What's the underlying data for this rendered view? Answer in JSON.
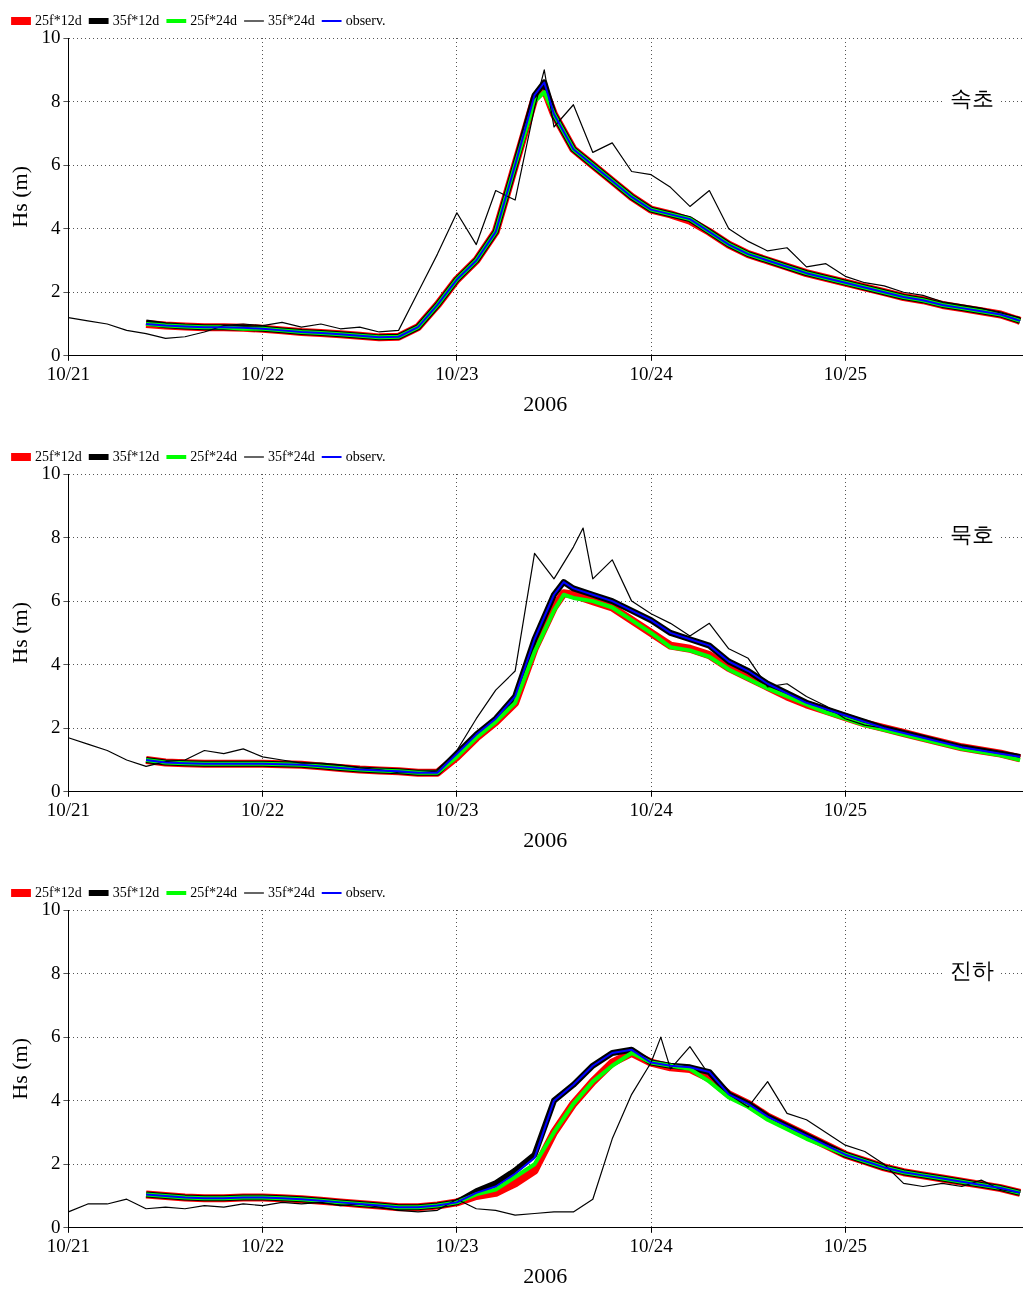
{
  "chart_data": [
    {
      "type": "line",
      "annotations": [
        "속초"
      ],
      "xlabel": "2006",
      "ylabel": "Hs (m)",
      "legend": "top left",
      "grid": true,
      "marker": "none",
      "line_style": "solid",
      "xlim": [
        "2006-10-21T00:00",
        "2006-10-25T21:50"
      ],
      "xticks": [
        {
          "value": "2006-10-21",
          "label": "10/21"
        },
        {
          "value": "2006-10-22",
          "label": "10/22"
        },
        {
          "value": "2006-10-23",
          "label": "10/23"
        },
        {
          "value": "2006-10-24",
          "label": "10/24"
        },
        {
          "value": "2006-10-25",
          "label": "10/25"
        }
      ],
      "ylim": [
        0,
        10
      ],
      "yticks": [
        0,
        2,
        4,
        6,
        8,
        10
      ],
      "x": [
        "2006-10-21T09:36",
        "2006-10-21T12:00",
        "2006-10-21T14:24",
        "2006-10-21T16:48",
        "2006-10-21T19:12",
        "2006-10-21T21:36",
        "2006-10-22T00:00",
        "2006-10-22T02:24",
        "2006-10-22T04:48",
        "2006-10-22T07:12",
        "2006-10-22T09:36",
        "2006-10-22T12:00",
        "2006-10-22T14:24",
        "2006-10-22T16:48",
        "2006-10-22T19:12",
        "2006-10-22T21:36",
        "2006-10-23T00:00",
        "2006-10-23T02:24",
        "2006-10-23T04:48",
        "2006-10-23T07:12",
        "2006-10-23T09:36",
        "2006-10-23T10:48",
        "2006-10-23T12:00",
        "2006-10-23T14:24",
        "2006-10-23T16:48",
        "2006-10-23T19:12",
        "2006-10-23T21:36",
        "2006-10-24T00:00",
        "2006-10-24T02:24",
        "2006-10-24T04:48",
        "2006-10-24T07:12",
        "2006-10-24T09:36",
        "2006-10-24T12:00",
        "2006-10-24T14:24",
        "2006-10-24T16:48",
        "2006-10-24T19:12",
        "2006-10-24T21:36",
        "2006-10-25T00:00",
        "2006-10-25T02:24",
        "2006-10-25T04:48",
        "2006-10-25T07:12",
        "2006-10-25T09:36",
        "2006-10-25T12:00",
        "2006-10-25T14:24",
        "2006-10-25T16:48",
        "2006-10-25T19:12",
        "2006-10-25T21:36"
      ],
      "series": [
        {
          "name": "25f*12d",
          "color": "#ff0000",
          "values": [
            1.0,
            0.95,
            0.92,
            0.9,
            0.9,
            0.88,
            0.85,
            0.8,
            0.75,
            0.72,
            0.68,
            0.63,
            0.58,
            0.6,
            0.9,
            1.6,
            2.4,
            3.0,
            3.9,
            6.0,
            8.1,
            8.4,
            7.6,
            6.5,
            6.0,
            5.5,
            5.0,
            4.6,
            4.45,
            4.25,
            3.9,
            3.5,
            3.2,
            3.0,
            2.8,
            2.6,
            2.45,
            2.3,
            2.15,
            2.0,
            1.85,
            1.75,
            1.6,
            1.5,
            1.4,
            1.3,
            1.1
          ]
        },
        {
          "name": "35f*12d",
          "color": "#000000",
          "values": [
            1.05,
            0.96,
            0.92,
            0.9,
            0.9,
            0.88,
            0.85,
            0.8,
            0.75,
            0.72,
            0.68,
            0.63,
            0.58,
            0.6,
            0.9,
            1.6,
            2.4,
            3.0,
            3.9,
            6.0,
            8.2,
            8.6,
            7.6,
            6.5,
            6.0,
            5.5,
            5.0,
            4.6,
            4.45,
            4.3,
            3.9,
            3.5,
            3.2,
            3.0,
            2.8,
            2.6,
            2.45,
            2.3,
            2.15,
            2.0,
            1.85,
            1.75,
            1.6,
            1.5,
            1.4,
            1.3,
            1.1
          ]
        },
        {
          "name": "25f*24d",
          "color": "#00ff00",
          "values": [
            1.0,
            0.95,
            0.92,
            0.9,
            0.9,
            0.85,
            0.85,
            0.8,
            0.75,
            0.72,
            0.68,
            0.63,
            0.58,
            0.6,
            0.9,
            1.6,
            2.4,
            3.0,
            3.9,
            6.0,
            8.0,
            8.3,
            7.6,
            6.5,
            6.0,
            5.5,
            5.0,
            4.6,
            4.45,
            4.3,
            3.9,
            3.5,
            3.2,
            3.0,
            2.8,
            2.6,
            2.45,
            2.3,
            2.15,
            2.0,
            1.85,
            1.75,
            1.6,
            1.5,
            1.4,
            1.3,
            1.1
          ]
        },
        {
          "name": "35f*24d",
          "color": "#000000",
          "x": [
            "2006-10-21T00:00",
            "2006-10-21T02:24",
            "2006-10-21T04:48",
            "2006-10-21T07:12",
            "2006-10-21T09:36",
            "2006-10-21T12:00",
            "2006-10-21T14:24",
            "2006-10-21T16:48",
            "2006-10-21T19:12",
            "2006-10-21T21:36",
            "2006-10-22T00:00",
            "2006-10-22T02:24",
            "2006-10-22T04:48",
            "2006-10-22T07:12",
            "2006-10-22T09:36",
            "2006-10-22T12:00",
            "2006-10-22T14:24",
            "2006-10-22T16:48",
            "2006-10-22T19:12",
            "2006-10-22T21:36",
            "2006-10-23T00:00",
            "2006-10-23T02:24",
            "2006-10-23T04:48",
            "2006-10-23T07:12",
            "2006-10-23T09:36",
            "2006-10-23T10:48",
            "2006-10-23T12:00",
            "2006-10-23T14:24",
            "2006-10-23T16:48",
            "2006-10-23T19:12",
            "2006-10-23T21:36",
            "2006-10-24T00:00",
            "2006-10-24T02:24",
            "2006-10-24T04:48",
            "2006-10-24T07:12",
            "2006-10-24T09:36",
            "2006-10-24T12:00",
            "2006-10-24T14:24",
            "2006-10-24T16:48",
            "2006-10-24T19:12",
            "2006-10-24T21:36",
            "2006-10-25T00:00",
            "2006-10-25T02:24",
            "2006-10-25T04:48",
            "2006-10-25T07:12",
            "2006-10-25T09:36",
            "2006-10-25T12:00",
            "2006-10-25T14:24",
            "2006-10-25T16:48",
            "2006-10-25T19:12",
            "2006-10-25T21:36"
          ],
          "values": [
            1.2,
            1.1,
            1.0,
            0.8,
            0.7,
            0.55,
            0.6,
            0.75,
            0.95,
            1.0,
            0.95,
            1.05,
            0.9,
            1.0,
            0.85,
            0.9,
            0.75,
            0.8,
            2.0,
            3.2,
            4.5,
            3.5,
            5.2,
            4.9,
            7.8,
            9.0,
            7.2,
            7.9,
            6.4,
            6.7,
            5.8,
            5.7,
            5.3,
            4.7,
            5.2,
            4.0,
            3.6,
            3.3,
            3.4,
            2.8,
            2.9,
            2.5,
            2.3,
            2.2,
            2.0,
            1.9,
            1.7,
            1.6,
            1.5,
            1.35,
            1.2
          ]
        },
        {
          "name": "observ.",
          "color": "#0000ff",
          "values": [
            1.0,
            0.95,
            0.92,
            0.9,
            0.9,
            0.88,
            0.85,
            0.8,
            0.75,
            0.72,
            0.68,
            0.63,
            0.58,
            0.6,
            0.9,
            1.6,
            2.4,
            3.0,
            3.9,
            6.0,
            8.2,
            8.6,
            7.6,
            6.5,
            6.0,
            5.5,
            5.0,
            4.6,
            4.45,
            4.3,
            3.9,
            3.5,
            3.2,
            3.0,
            2.8,
            2.6,
            2.45,
            2.3,
            2.15,
            2.0,
            1.85,
            1.75,
            1.6,
            1.5,
            1.4,
            1.3,
            1.1
          ]
        }
      ]
    },
    {
      "type": "line",
      "annotations": [
        "묵호"
      ],
      "xlabel": "2006",
      "ylabel": "Hs (m)",
      "legend": "top left",
      "grid": true,
      "marker": "none",
      "line_style": "solid",
      "xlim": [
        "2006-10-21T00:00",
        "2006-10-25T21:50"
      ],
      "xticks": [
        {
          "value": "2006-10-21",
          "label": "10/21"
        },
        {
          "value": "2006-10-22",
          "label": "10/22"
        },
        {
          "value": "2006-10-23",
          "label": "10/23"
        },
        {
          "value": "2006-10-24",
          "label": "10/24"
        },
        {
          "value": "2006-10-25",
          "label": "10/25"
        }
      ],
      "ylim": [
        0,
        10
      ],
      "yticks": [
        0,
        2,
        4,
        6,
        8,
        10
      ],
      "x": [
        "2006-10-21T09:36",
        "2006-10-21T12:00",
        "2006-10-21T14:24",
        "2006-10-21T16:48",
        "2006-10-21T19:12",
        "2006-10-21T21:36",
        "2006-10-22T00:00",
        "2006-10-22T02:24",
        "2006-10-22T04:48",
        "2006-10-22T07:12",
        "2006-10-22T09:36",
        "2006-10-22T12:00",
        "2006-10-22T14:24",
        "2006-10-22T16:48",
        "2006-10-22T19:12",
        "2006-10-22T21:36",
        "2006-10-23T00:00",
        "2006-10-23T02:24",
        "2006-10-23T04:48",
        "2006-10-23T07:12",
        "2006-10-23T09:36",
        "2006-10-23T12:00",
        "2006-10-23T13:12",
        "2006-10-23T14:24",
        "2006-10-23T16:48",
        "2006-10-23T19:12",
        "2006-10-23T21:36",
        "2006-10-24T00:00",
        "2006-10-24T02:24",
        "2006-10-24T04:48",
        "2006-10-24T07:12",
        "2006-10-24T09:36",
        "2006-10-24T12:00",
        "2006-10-24T14:24",
        "2006-10-24T16:48",
        "2006-10-24T19:12",
        "2006-10-24T21:36",
        "2006-10-25T00:00",
        "2006-10-25T02:24",
        "2006-10-25T04:48",
        "2006-10-25T07:12",
        "2006-10-25T09:36",
        "2006-10-25T12:00",
        "2006-10-25T14:24",
        "2006-10-25T16:48",
        "2006-10-25T19:12",
        "2006-10-25T21:36"
      ],
      "series": [
        {
          "name": "25f*12d",
          "color": "#ff0000",
          "values": [
            1.0,
            0.92,
            0.9,
            0.88,
            0.88,
            0.88,
            0.88,
            0.87,
            0.85,
            0.8,
            0.75,
            0.7,
            0.67,
            0.65,
            0.6,
            0.6,
            1.1,
            1.7,
            2.2,
            2.8,
            4.5,
            5.8,
            6.25,
            6.2,
            6.0,
            5.8,
            5.4,
            5.0,
            4.6,
            4.5,
            4.3,
            3.9,
            3.6,
            3.3,
            3.0,
            2.75,
            2.55,
            2.35,
            2.15,
            2.0,
            1.85,
            1.7,
            1.55,
            1.4,
            1.3,
            1.2,
            1.05
          ]
        },
        {
          "name": "35f*12d",
          "color": "#000000",
          "values": [
            1.0,
            0.92,
            0.9,
            0.88,
            0.88,
            0.88,
            0.88,
            0.87,
            0.85,
            0.8,
            0.75,
            0.7,
            0.67,
            0.65,
            0.6,
            0.6,
            1.2,
            1.8,
            2.3,
            3.0,
            4.8,
            6.2,
            6.6,
            6.4,
            6.2,
            6.0,
            5.7,
            5.4,
            5.0,
            4.8,
            4.6,
            4.1,
            3.8,
            3.4,
            3.1,
            2.8,
            2.6,
            2.4,
            2.2,
            2.0,
            1.85,
            1.7,
            1.55,
            1.4,
            1.3,
            1.2,
            1.1
          ]
        },
        {
          "name": "25f*24d",
          "color": "#00ff00",
          "values": [
            1.0,
            0.92,
            0.9,
            0.88,
            0.88,
            0.88,
            0.88,
            0.87,
            0.85,
            0.8,
            0.75,
            0.7,
            0.67,
            0.65,
            0.6,
            0.6,
            1.1,
            1.7,
            2.2,
            2.8,
            4.4,
            5.7,
            6.2,
            6.1,
            6.0,
            5.8,
            5.4,
            5.0,
            4.55,
            4.45,
            4.25,
            3.85,
            3.55,
            3.25,
            3.0,
            2.75,
            2.5,
            2.3,
            2.1,
            1.95,
            1.8,
            1.65,
            1.5,
            1.35,
            1.25,
            1.15,
            1.0
          ]
        },
        {
          "name": "35f*24d",
          "color": "#000000",
          "x": [
            "2006-10-21T00:00",
            "2006-10-21T02:24",
            "2006-10-21T04:48",
            "2006-10-21T07:12",
            "2006-10-21T09:36",
            "2006-10-21T12:00",
            "2006-10-21T14:24",
            "2006-10-21T16:48",
            "2006-10-21T19:12",
            "2006-10-21T21:36",
            "2006-10-22T00:00",
            "2006-10-22T02:24",
            "2006-10-22T04:48",
            "2006-10-22T07:12",
            "2006-10-22T09:36",
            "2006-10-22T12:00",
            "2006-10-22T14:24",
            "2006-10-22T16:48",
            "2006-10-22T19:12",
            "2006-10-22T21:36",
            "2006-10-23T00:00",
            "2006-10-23T02:24",
            "2006-10-23T04:48",
            "2006-10-23T07:12",
            "2006-10-23T09:36",
            "2006-10-23T12:00",
            "2006-10-23T14:24",
            "2006-10-23T15:36",
            "2006-10-23T16:48",
            "2006-10-23T19:12",
            "2006-10-23T21:36",
            "2006-10-24T00:00",
            "2006-10-24T02:24",
            "2006-10-24T04:48",
            "2006-10-24T07:12",
            "2006-10-24T09:36",
            "2006-10-24T12:00",
            "2006-10-24T14:24",
            "2006-10-24T16:48",
            "2006-10-24T19:12",
            "2006-10-24T21:36",
            "2006-10-25T00:00",
            "2006-10-25T02:24",
            "2006-10-25T04:48",
            "2006-10-25T07:12",
            "2006-10-25T09:36",
            "2006-10-25T12:00",
            "2006-10-25T14:24",
            "2006-10-25T16:48",
            "2006-10-25T19:12",
            "2006-10-25T21:36"
          ],
          "values": [
            1.7,
            1.5,
            1.3,
            1.0,
            0.8,
            0.95,
            1.0,
            1.3,
            1.2,
            1.35,
            1.1,
            1.0,
            0.9,
            0.9,
            0.85,
            0.75,
            0.7,
            0.6,
            0.6,
            0.65,
            1.3,
            2.3,
            3.2,
            3.8,
            7.5,
            6.7,
            7.7,
            8.3,
            6.7,
            7.3,
            6.0,
            5.6,
            5.3,
            4.9,
            5.3,
            4.5,
            4.2,
            3.3,
            3.4,
            3.0,
            2.7,
            2.3,
            2.1,
            2.0,
            1.9,
            1.7,
            1.6,
            1.4,
            1.3,
            1.2,
            1.1
          ]
        },
        {
          "name": "observ.",
          "color": "#0000ff",
          "values": [
            1.0,
            0.92,
            0.9,
            0.88,
            0.88,
            0.88,
            0.88,
            0.87,
            0.85,
            0.8,
            0.75,
            0.7,
            0.67,
            0.65,
            0.6,
            0.6,
            1.2,
            1.8,
            2.3,
            3.0,
            4.8,
            6.2,
            6.6,
            6.4,
            6.2,
            6.0,
            5.7,
            5.4,
            5.0,
            4.8,
            4.6,
            4.1,
            3.8,
            3.4,
            3.1,
            2.8,
            2.6,
            2.4,
            2.2,
            2.0,
            1.85,
            1.7,
            1.55,
            1.4,
            1.3,
            1.2,
            1.1
          ]
        }
      ]
    },
    {
      "type": "line",
      "annotations": [
        "진하"
      ],
      "xlabel": "2006",
      "ylabel": "Hs (m)",
      "legend": "top left",
      "grid": true,
      "marker": "none",
      "line_style": "solid",
      "xlim": [
        "2006-10-21T00:00",
        "2006-10-25T21:50"
      ],
      "xticks": [
        {
          "value": "2006-10-21",
          "label": "10/21"
        },
        {
          "value": "2006-10-22",
          "label": "10/22"
        },
        {
          "value": "2006-10-23",
          "label": "10/23"
        },
        {
          "value": "2006-10-24",
          "label": "10/24"
        },
        {
          "value": "2006-10-25",
          "label": "10/25"
        }
      ],
      "ylim": [
        0,
        10
      ],
      "yticks": [
        0,
        2,
        4,
        6,
        8,
        10
      ],
      "x": [
        "2006-10-21T09:36",
        "2006-10-21T12:00",
        "2006-10-21T14:24",
        "2006-10-21T16:48",
        "2006-10-21T19:12",
        "2006-10-21T21:36",
        "2006-10-22T00:00",
        "2006-10-22T02:24",
        "2006-10-22T04:48",
        "2006-10-22T07:12",
        "2006-10-22T09:36",
        "2006-10-22T12:00",
        "2006-10-22T14:24",
        "2006-10-22T16:48",
        "2006-10-22T19:12",
        "2006-10-22T21:36",
        "2006-10-23T00:00",
        "2006-10-23T02:24",
        "2006-10-23T04:48",
        "2006-10-23T07:12",
        "2006-10-23T09:36",
        "2006-10-23T12:00",
        "2006-10-23T14:24",
        "2006-10-23T16:48",
        "2006-10-23T19:12",
        "2006-10-23T21:36",
        "2006-10-24T00:00",
        "2006-10-24T02:24",
        "2006-10-24T04:48",
        "2006-10-24T07:12",
        "2006-10-24T09:36",
        "2006-10-24T12:00",
        "2006-10-24T14:24",
        "2006-10-24T16:48",
        "2006-10-24T19:12",
        "2006-10-24T21:36",
        "2006-10-25T00:00",
        "2006-10-25T02:24",
        "2006-10-25T04:48",
        "2006-10-25T07:12",
        "2006-10-25T09:36",
        "2006-10-25T12:00",
        "2006-10-25T14:24",
        "2006-10-25T16:48",
        "2006-10-25T19:12",
        "2006-10-25T21:36"
      ],
      "series": [
        {
          "name": "25f*12d",
          "color": "#ff0000",
          "values": [
            1.05,
            1.0,
            0.95,
            0.93,
            0.93,
            0.95,
            0.95,
            0.93,
            0.9,
            0.85,
            0.8,
            0.75,
            0.7,
            0.65,
            0.65,
            0.7,
            0.8,
            1.0,
            1.1,
            1.4,
            1.8,
            3.0,
            3.9,
            4.6,
            5.2,
            5.5,
            5.2,
            5.05,
            5.0,
            4.7,
            4.2,
            3.9,
            3.5,
            3.2,
            2.9,
            2.6,
            2.3,
            2.1,
            1.9,
            1.75,
            1.65,
            1.55,
            1.45,
            1.35,
            1.25,
            1.1
          ]
        },
        {
          "name": "35f*12d",
          "color": "#000000",
          "values": [
            1.05,
            1.0,
            0.95,
            0.93,
            0.93,
            0.95,
            0.95,
            0.93,
            0.9,
            0.85,
            0.8,
            0.75,
            0.7,
            0.65,
            0.65,
            0.7,
            0.8,
            1.15,
            1.4,
            1.8,
            2.3,
            4.0,
            4.5,
            5.1,
            5.5,
            5.6,
            5.2,
            5.1,
            5.05,
            4.9,
            4.2,
            3.9,
            3.5,
            3.2,
            2.9,
            2.6,
            2.3,
            2.1,
            1.9,
            1.75,
            1.65,
            1.55,
            1.45,
            1.35,
            1.25,
            1.1
          ]
        },
        {
          "name": "25f*24d",
          "color": "#00ff00",
          "values": [
            1.05,
            1.0,
            0.95,
            0.93,
            0.93,
            0.95,
            0.95,
            0.93,
            0.9,
            0.85,
            0.8,
            0.75,
            0.7,
            0.65,
            0.65,
            0.7,
            0.8,
            1.05,
            1.2,
            1.6,
            2.0,
            3.0,
            3.9,
            4.6,
            5.1,
            5.5,
            5.2,
            5.1,
            5.0,
            4.6,
            4.1,
            3.8,
            3.4,
            3.1,
            2.8,
            2.55,
            2.3,
            2.1,
            1.9,
            1.75,
            1.65,
            1.55,
            1.45,
            1.35,
            1.25,
            1.1
          ]
        },
        {
          "name": "35f*24d",
          "color": "#000000",
          "x": [
            "2006-10-21T00:00",
            "2006-10-21T02:24",
            "2006-10-21T04:48",
            "2006-10-21T07:12",
            "2006-10-21T09:36",
            "2006-10-21T12:00",
            "2006-10-21T14:24",
            "2006-10-21T16:48",
            "2006-10-21T19:12",
            "2006-10-21T21:36",
            "2006-10-22T00:00",
            "2006-10-22T02:24",
            "2006-10-22T04:48",
            "2006-10-22T07:12",
            "2006-10-22T09:36",
            "2006-10-22T12:00",
            "2006-10-22T14:24",
            "2006-10-22T16:48",
            "2006-10-22T19:12",
            "2006-10-22T21:36",
            "2006-10-23T00:00",
            "2006-10-23T02:24",
            "2006-10-23T04:48",
            "2006-10-23T07:12",
            "2006-10-23T09:36",
            "2006-10-23T12:00",
            "2006-10-23T14:24",
            "2006-10-23T16:48",
            "2006-10-23T19:12",
            "2006-10-23T21:36",
            "2006-10-24T00:00",
            "2006-10-24T01:12",
            "2006-10-24T02:24",
            "2006-10-24T04:48",
            "2006-10-24T07:12",
            "2006-10-24T09:36",
            "2006-10-24T12:00",
            "2006-10-24T14:24",
            "2006-10-24T16:48",
            "2006-10-24T19:12",
            "2006-10-24T21:36",
            "2006-10-25T00:00",
            "2006-10-25T02:24",
            "2006-10-25T04:48",
            "2006-10-25T07:12",
            "2006-10-25T09:36",
            "2006-10-25T12:00",
            "2006-10-25T14:24",
            "2006-10-25T16:48",
            "2006-10-25T19:12",
            "2006-10-25T21:36"
          ],
          "values": [
            0.5,
            0.75,
            0.75,
            0.9,
            0.6,
            0.65,
            0.6,
            0.7,
            0.65,
            0.75,
            0.7,
            0.8,
            0.75,
            0.8,
            0.7,
            0.75,
            0.65,
            0.55,
            0.5,
            0.55,
            0.9,
            0.6,
            0.55,
            0.4,
            0.45,
            0.5,
            0.5,
            0.9,
            2.8,
            4.2,
            5.2,
            6.0,
            5.0,
            5.7,
            4.8,
            4.2,
            3.8,
            4.6,
            3.6,
            3.4,
            3.0,
            2.6,
            2.4,
            2.0,
            1.4,
            1.3,
            1.4,
            1.3,
            1.5,
            1.2,
            1.1
          ]
        },
        {
          "name": "observ.",
          "color": "#0000ff",
          "values": [
            1.05,
            1.0,
            0.95,
            0.93,
            0.93,
            0.95,
            0.95,
            0.93,
            0.9,
            0.85,
            0.8,
            0.75,
            0.7,
            0.65,
            0.65,
            0.7,
            0.8,
            1.1,
            1.3,
            1.7,
            2.2,
            4.0,
            4.5,
            5.1,
            5.5,
            5.6,
            5.2,
            5.1,
            5.05,
            4.9,
            4.2,
            3.9,
            3.5,
            3.2,
            2.9,
            2.6,
            2.3,
            2.1,
            1.9,
            1.75,
            1.65,
            1.55,
            1.45,
            1.35,
            1.25,
            1.1
          ]
        }
      ]
    }
  ]
}
